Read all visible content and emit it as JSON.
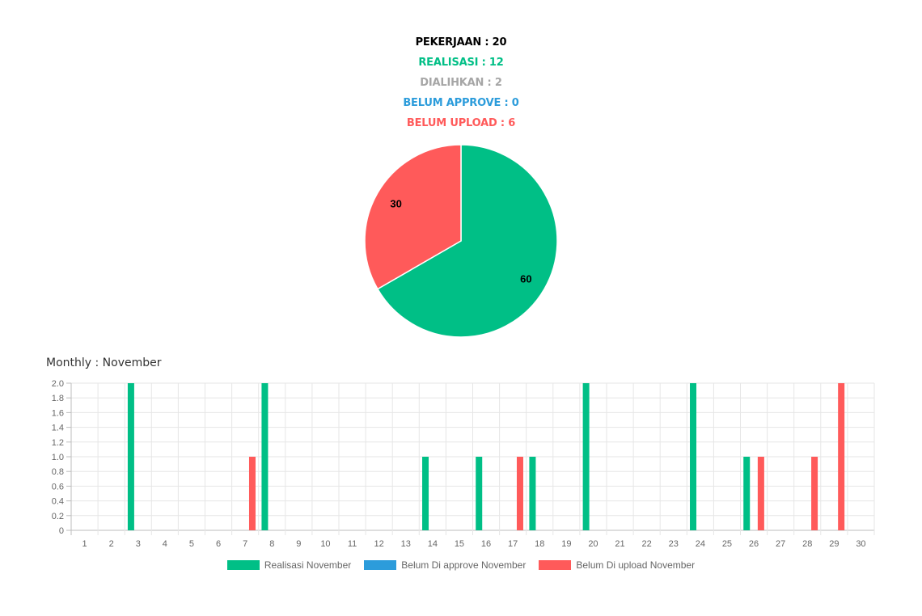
{
  "summary": {
    "pekerjaan": {
      "text": "PEKERJAAN : 20",
      "color": "#000000"
    },
    "realisasi": {
      "text": "REALISASI : 12",
      "color": "#00bf86"
    },
    "dialihkan": {
      "text": "DIALIHKAN : 2",
      "color": "#a6a6a6"
    },
    "belum_approve": {
      "text": "BELUM APPROVE : 0",
      "color": "#2c9cdb"
    },
    "belum_upload": {
      "text": "BELUM UPLOAD : 6",
      "color": "#ff5a5a"
    }
  },
  "monthly_title": "Monthly : November",
  "chart_data": [
    {
      "type": "pie",
      "slices": [
        {
          "label": "60",
          "value": 60,
          "color": "#00bf86"
        },
        {
          "label": "30",
          "value": 30,
          "color": "#ff5a5a"
        }
      ]
    },
    {
      "type": "bar",
      "categories": [
        "1",
        "2",
        "3",
        "4",
        "5",
        "6",
        "7",
        "8",
        "9",
        "10",
        "11",
        "12",
        "13",
        "14",
        "15",
        "16",
        "17",
        "18",
        "19",
        "20",
        "21",
        "22",
        "23",
        "24",
        "25",
        "26",
        "27",
        "28",
        "29",
        "30"
      ],
      "series": [
        {
          "name": "Realisasi November",
          "color": "#00bf86",
          "values": [
            0,
            0,
            2,
            0,
            0,
            0,
            0,
            2,
            0,
            0,
            0,
            0,
            0,
            1,
            0,
            1,
            0,
            1,
            0,
            2,
            0,
            0,
            0,
            2,
            0,
            1,
            0,
            0,
            0,
            0
          ]
        },
        {
          "name": "Belum Di approve November",
          "color": "#2c9cdb",
          "values": [
            0,
            0,
            0,
            0,
            0,
            0,
            0,
            0,
            0,
            0,
            0,
            0,
            0,
            0,
            0,
            0,
            0,
            0,
            0,
            0,
            0,
            0,
            0,
            0,
            0,
            0,
            0,
            0,
            0,
            0
          ]
        },
        {
          "name": "Belum Di upload November",
          "color": "#ff5a5a",
          "values": [
            0,
            0,
            0,
            0,
            0,
            0,
            1,
            0,
            0,
            0,
            0,
            0,
            0,
            0,
            0,
            0,
            1,
            0,
            0,
            0,
            0,
            0,
            0,
            0,
            0,
            1,
            0,
            1,
            2,
            0
          ]
        }
      ],
      "ylim": [
        0,
        2
      ],
      "yticks": [
        "0",
        "0.2",
        "0.4",
        "0.6",
        "0.8",
        "1.0",
        "1.2",
        "1.4",
        "1.6",
        "1.8",
        "2.0"
      ],
      "grid": true,
      "legend": "bottom"
    }
  ]
}
